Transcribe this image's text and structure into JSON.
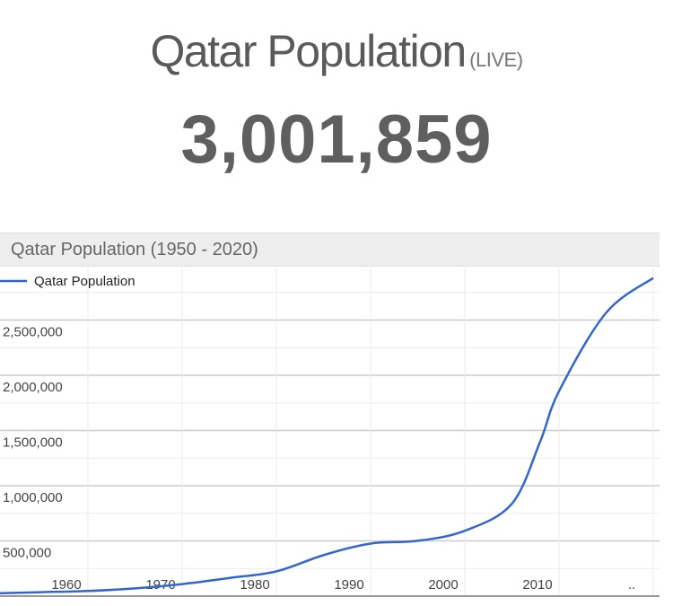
{
  "headline": {
    "title": "Qatar Population",
    "suffix": "(LIVE)"
  },
  "counter": {
    "value": "3,001,859"
  },
  "chart_data": {
    "type": "line",
    "title": "Qatar Population (1950 - 2020)",
    "xlabel": "",
    "ylabel": "",
    "x_tick_labels": [
      "1960",
      "1970",
      "1980",
      "1990",
      "2000",
      "2010",
      ".."
    ],
    "y_tick_labels": [
      "500,000",
      "1,000,000",
      "1,500,000",
      "2,000,000",
      "2,500,000"
    ],
    "y_ticks": [
      500000,
      1000000,
      1500000,
      2000000,
      2500000
    ],
    "xlim": [
      1950,
      2020
    ],
    "ylim": [
      0,
      3000000
    ],
    "grid": true,
    "legend": "top-left",
    "series": [
      {
        "name": "Qatar Population",
        "color": "#3366cc",
        "x": [
          1950,
          1955,
          1960,
          1965,
          1970,
          1975,
          1980,
          1985,
          1990,
          1995,
          2000,
          2005,
          2008,
          2010,
          2015,
          2020
        ],
        "values": [
          25000,
          36000,
          47000,
          70000,
          109000,
          164000,
          224000,
          371000,
          476000,
          501000,
          592000,
          837000,
          1400000,
          1856000,
          2566000,
          2881000
        ]
      }
    ]
  }
}
